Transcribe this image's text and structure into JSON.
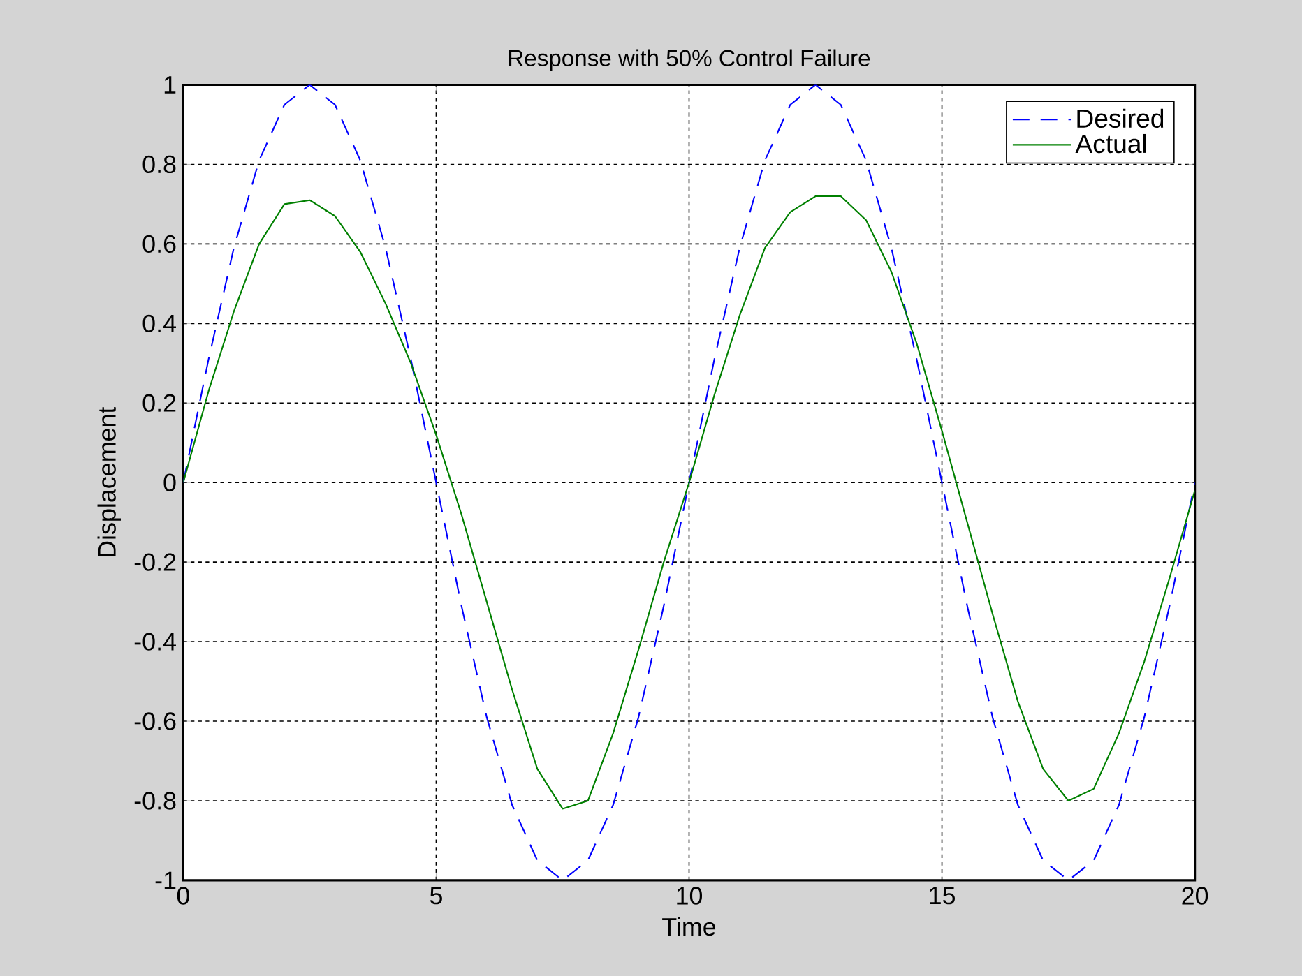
{
  "chart_data": {
    "type": "line",
    "title": "Response with 50% Control Failure",
    "xlabel": "Time",
    "ylabel": "Displacement",
    "xlim": [
      0,
      20
    ],
    "ylim": [
      -1,
      1
    ],
    "xticks": [
      0,
      5,
      10,
      15,
      20
    ],
    "yticks": [
      -1,
      -0.8,
      -0.6,
      -0.4,
      -0.2,
      0,
      0.2,
      0.4,
      0.6,
      0.8,
      1
    ],
    "grid": true,
    "legend": "top right",
    "x": [
      0,
      0.5,
      1,
      1.5,
      2,
      2.5,
      3,
      3.5,
      4,
      4.5,
      5,
      5.5,
      6,
      6.5,
      7,
      7.5,
      8,
      8.5,
      9,
      9.5,
      10,
      10.5,
      11,
      11.5,
      12,
      12.5,
      13,
      13.5,
      14,
      14.5,
      15,
      15.5,
      16,
      16.5,
      17,
      17.5,
      18,
      18.5,
      19,
      19.5,
      20
    ],
    "series": [
      {
        "name": "Desired",
        "color": "#0000ff",
        "line_style": "dashed",
        "values": [
          0,
          0.31,
          0.59,
          0.81,
          0.95,
          1,
          0.95,
          0.81,
          0.59,
          0.31,
          0,
          -0.31,
          -0.59,
          -0.81,
          -0.95,
          -1,
          -0.95,
          -0.81,
          -0.59,
          -0.31,
          0,
          0.31,
          0.59,
          0.81,
          0.95,
          1,
          0.95,
          0.81,
          0.59,
          0.31,
          0,
          -0.31,
          -0.59,
          -0.81,
          -0.95,
          -1,
          -0.95,
          -0.81,
          -0.59,
          -0.31,
          0
        ]
      },
      {
        "name": "Actual",
        "color": "#008000",
        "line_style": "solid",
        "values": [
          0,
          0.23,
          0.43,
          0.6,
          0.7,
          0.71,
          0.67,
          0.58,
          0.45,
          0.3,
          0.12,
          -0.08,
          -0.3,
          -0.52,
          -0.72,
          -0.82,
          -0.8,
          -0.63,
          -0.42,
          -0.2,
          0,
          0.22,
          0.42,
          0.59,
          0.68,
          0.72,
          0.72,
          0.66,
          0.53,
          0.35,
          0.13,
          -0.1,
          -0.33,
          -0.55,
          -0.72,
          -0.8,
          -0.77,
          -0.63,
          -0.45,
          -0.24,
          -0.02
        ]
      }
    ]
  }
}
